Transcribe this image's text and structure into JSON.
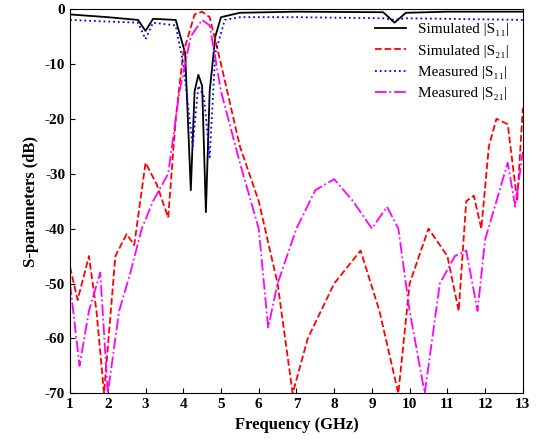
{
  "chart_data": {
    "type": "line",
    "x_label": "Frequency (GHz)",
    "y_label": "S-parameters (dB)",
    "xlim": [
      1,
      13
    ],
    "xticks": [
      1,
      2,
      3,
      4,
      5,
      6,
      7,
      8,
      9,
      10,
      11,
      12,
      13
    ],
    "ylim": [
      -70,
      0
    ],
    "yticks": [
      -70,
      -60,
      -50,
      -40,
      -30,
      -20,
      -10,
      0
    ],
    "grid": false,
    "legend": "upper right",
    "series": [
      {
        "name": "Simulated |S₁₁|",
        "color": "#000000",
        "line_style": "solid",
        "x": [
          1.0,
          2.0,
          2.8,
          3.0,
          3.2,
          3.8,
          4.05,
          4.2,
          4.3,
          4.4,
          4.5,
          4.6,
          4.7,
          4.85,
          5.0,
          5.5,
          7.0,
          9.3,
          9.6,
          9.9,
          11.0,
          13.0
        ],
        "values": [
          -1.0,
          -1.5,
          -2.0,
          -4.0,
          -1.8,
          -2.0,
          -8.0,
          -33.0,
          -15.0,
          -12.0,
          -14.0,
          -37.0,
          -15.0,
          -5.0,
          -1.5,
          -0.7,
          -0.5,
          -0.6,
          -2.5,
          -0.7,
          -0.5,
          -0.5
        ]
      },
      {
        "name": "Simulated |S₂₁|",
        "color": "#ff0000",
        "line_style": "dashed",
        "x": [
          1.0,
          1.2,
          1.5,
          1.7,
          1.9,
          2.2,
          2.5,
          2.7,
          3.0,
          3.3,
          3.6,
          3.8,
          4.0,
          4.3,
          4.5,
          4.7,
          5.0,
          5.5,
          6.0,
          6.5,
          6.9,
          7.3,
          8.0,
          8.7,
          9.2,
          9.7,
          10.0,
          10.5,
          11.0,
          11.3,
          11.5,
          11.7,
          11.9,
          12.1,
          12.3,
          12.6,
          12.85,
          13.0
        ],
        "values": [
          -47.0,
          -53.0,
          -45.0,
          -55.0,
          -70.0,
          -45.0,
          -41.0,
          -43.0,
          -28.0,
          -32.0,
          -38.0,
          -20.0,
          -8.0,
          -1.0,
          -0.5,
          -1.5,
          -10.0,
          -25.0,
          -35.0,
          -50.0,
          -70.0,
          -60.0,
          -50.0,
          -44.0,
          -55.0,
          -70.0,
          -50.0,
          -40.0,
          -45.0,
          -55.0,
          -35.0,
          -34.0,
          -40.0,
          -25.0,
          -20.0,
          -21.0,
          -35.0,
          -18.0
        ]
      },
      {
        "name": "Measured |S₁₁|",
        "color": "#0000ff",
        "line_style": "dotted",
        "x": [
          1.0,
          2.0,
          2.8,
          3.0,
          3.2,
          3.8,
          4.0,
          4.25,
          4.4,
          4.55,
          4.7,
          4.85,
          5.1,
          5.5,
          7.0,
          9.3,
          9.6,
          9.9,
          11.0,
          13.0
        ],
        "values": [
          -2.0,
          -2.3,
          -2.5,
          -5.5,
          -2.5,
          -3.0,
          -10.0,
          -25.0,
          -14.0,
          -16.0,
          -27.0,
          -8.0,
          -2.0,
          -1.5,
          -1.5,
          -1.7,
          -2.0,
          -1.7,
          -1.8,
          -2.0
        ]
      },
      {
        "name": "Measured |S₂₁|",
        "color": "#ff00ff",
        "line_style": "dashdot",
        "x": [
          1.0,
          1.25,
          1.5,
          1.8,
          2.0,
          2.3,
          2.6,
          2.9,
          3.2,
          3.6,
          3.9,
          4.2,
          4.5,
          4.7,
          5.0,
          5.5,
          6.0,
          6.25,
          6.5,
          7.0,
          7.5,
          8.0,
          8.5,
          9.0,
          9.4,
          9.7,
          10.0,
          10.4,
          10.8,
          11.2,
          11.5,
          11.8,
          12.0,
          12.3,
          12.6,
          12.8,
          13.0
        ],
        "values": [
          -50.0,
          -65.0,
          -55.0,
          -48.0,
          -70.0,
          -55.0,
          -48.0,
          -40.0,
          -35.0,
          -30.0,
          -15.0,
          -5.0,
          -2.0,
          -3.0,
          -15.0,
          -28.0,
          -40.0,
          -58.0,
          -50.0,
          -40.0,
          -33.0,
          -31.0,
          -35.0,
          -40.0,
          -36.0,
          -40.0,
          -55.0,
          -70.0,
          -50.0,
          -45.0,
          -44.0,
          -55.0,
          -42.0,
          -35.0,
          -28.0,
          -36.0,
          -26.0
        ]
      }
    ]
  }
}
